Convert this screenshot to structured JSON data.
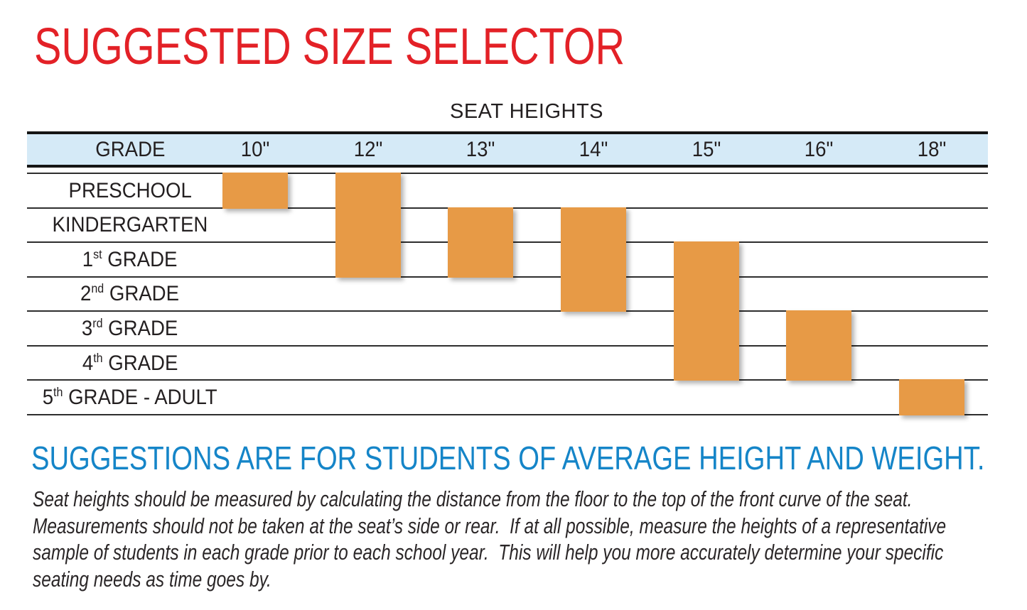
{
  "title": "SUGGESTED SIZE SELECTOR",
  "table": {
    "caption": "SEAT HEIGHTS",
    "grade_header": "GRADE",
    "columns": [
      "10\"",
      "12\"",
      "13\"",
      "14\"",
      "15\"",
      "16\"",
      "18\""
    ],
    "rows": [
      {
        "label": "PRESCHOOL",
        "sup": "",
        "tail": ""
      },
      {
        "label": "KINDERGARTEN",
        "sup": "",
        "tail": ""
      },
      {
        "label": "1",
        "sup": "st",
        "tail": " GRADE"
      },
      {
        "label": "2",
        "sup": "nd",
        "tail": " GRADE"
      },
      {
        "label": "3",
        "sup": "rd",
        "tail": " GRADE"
      },
      {
        "label": "4",
        "sup": "th",
        "tail": " GRADE"
      },
      {
        "label": "5",
        "sup": "th",
        "tail": " GRADE - ADULT"
      }
    ]
  },
  "chart_data": {
    "type": "table",
    "title": "SEAT HEIGHTS",
    "x_categories": [
      "10\"",
      "12\"",
      "13\"",
      "14\"",
      "15\"",
      "16\"",
      "18\""
    ],
    "y_categories": [
      "PRESCHOOL",
      "KINDERGARTEN",
      "1st GRADE",
      "2nd GRADE",
      "3rd GRADE",
      "4th GRADE",
      "5th GRADE - ADULT"
    ],
    "suggested_ranges": [
      {
        "seat_height": "10\"",
        "col": 0,
        "row_span": [
          0,
          0
        ],
        "grades": [
          "PRESCHOOL"
        ]
      },
      {
        "seat_height": "12\"",
        "col": 1,
        "row_span": [
          0,
          2
        ],
        "grades": [
          "PRESCHOOL",
          "KINDERGARTEN",
          "1st GRADE"
        ]
      },
      {
        "seat_height": "13\"",
        "col": 2,
        "row_span": [
          1,
          2
        ],
        "grades": [
          "KINDERGARTEN",
          "1st GRADE"
        ]
      },
      {
        "seat_height": "14\"",
        "col": 3,
        "row_span": [
          1,
          3
        ],
        "grades": [
          "KINDERGARTEN",
          "1st GRADE",
          "2nd GRADE"
        ]
      },
      {
        "seat_height": "15\"",
        "col": 4,
        "row_span": [
          2,
          5
        ],
        "grades": [
          "1st GRADE",
          "2nd GRADE",
          "3rd GRADE",
          "4th GRADE"
        ]
      },
      {
        "seat_height": "16\"",
        "col": 5,
        "row_span": [
          4,
          5
        ],
        "grades": [
          "3rd GRADE",
          "4th GRADE"
        ]
      },
      {
        "seat_height": "18\"",
        "col": 6,
        "row_span": [
          6,
          6
        ],
        "grades": [
          "5th GRADE - ADULT"
        ]
      }
    ],
    "grid": true,
    "legend_position": "none"
  },
  "footer": {
    "heading": "SUGGESTIONS ARE FOR STUDENTS OF AVERAGE HEIGHT AND WEIGHT.",
    "paragraph_lines": [
      "Seat heights should be measured by calculating the distance from the floor to the top of the front curve of the seat.",
      "Measurements should not be taken at the seat’s side or rear.  If at all possible, measure the heights of a representative",
      "sample of students in each grade prior to each school year.  This will help you more accurately determine your specific",
      "seating needs as time goes by."
    ]
  },
  "colors": {
    "title_red": "#e32127",
    "header_band_blue": "#d5eaf7",
    "bar_orange": "#e79a46",
    "heading_blue": "#1585c8",
    "text_black": "#231f20"
  }
}
